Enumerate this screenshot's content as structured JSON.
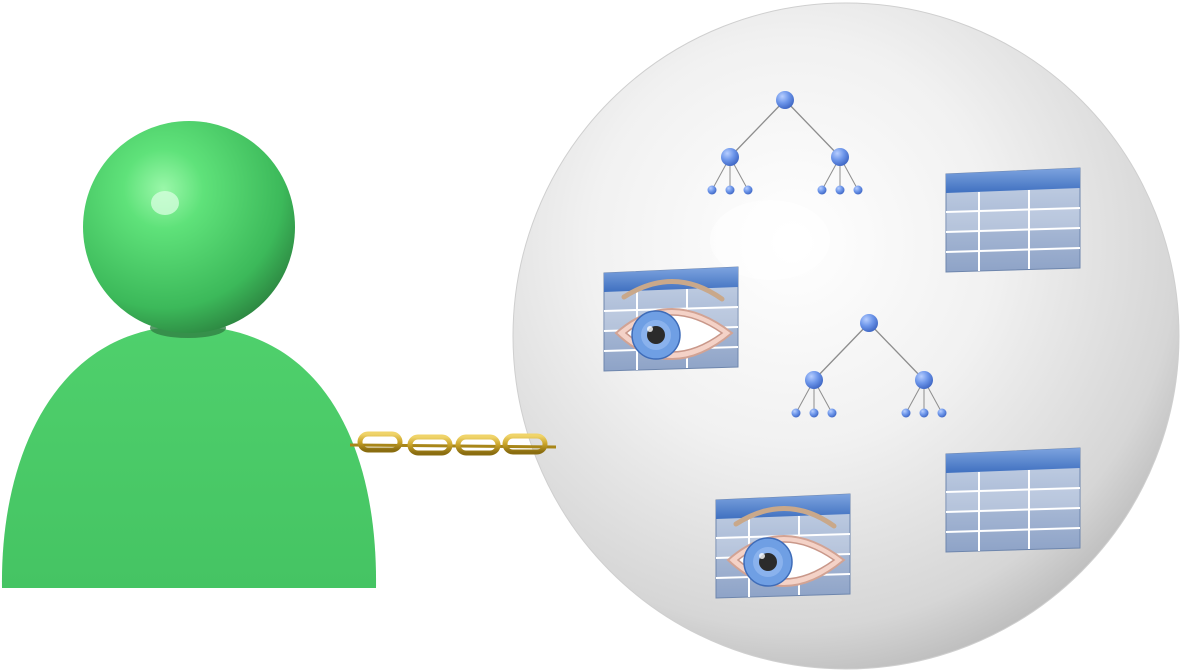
{
  "scene": {
    "user": {
      "icon": "user-icon",
      "head_color": "#4fcf6a",
      "body_color": "#4cc96a"
    },
    "chain": {
      "icon": "chain-link-icon",
      "color": "#c9a227"
    },
    "sphere": {
      "icon": "schema-sphere-icon",
      "color": "#e8e8e8"
    },
    "objects": [
      {
        "kind": "hierarchy",
        "icon": "hierarchy-tree-icon"
      },
      {
        "kind": "table",
        "icon": "table-icon"
      },
      {
        "kind": "view",
        "icon": "view-table-eye-icon"
      },
      {
        "kind": "hierarchy",
        "icon": "hierarchy-tree-icon"
      },
      {
        "kind": "table",
        "icon": "table-icon"
      },
      {
        "kind": "view",
        "icon": "view-table-eye-icon"
      }
    ],
    "accent_color": "#5b86d6"
  }
}
